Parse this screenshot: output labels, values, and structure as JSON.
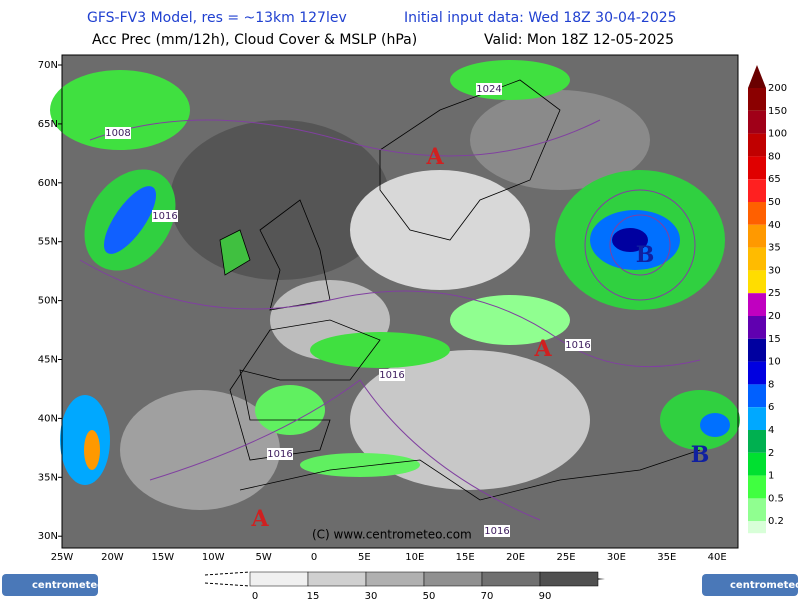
{
  "header": {
    "line1_left": "GFS-FV3 Model, res = ~13km 127lev",
    "line1_right": "Initial input data: Wed 18Z 30-04-2025",
    "line2_left": "Acc Prec (mm/12h), Cloud Cover & MSLP (hPa)",
    "line2_right": "Valid: Mon 18Z 12-05-2025"
  },
  "map": {
    "lat_labels": [
      "70N",
      "65N",
      "60N",
      "55N",
      "50N",
      "45N",
      "40N",
      "35N",
      "30N"
    ],
    "lon_labels": [
      "25W",
      "20W",
      "15W",
      "10W",
      "5W",
      "0",
      "5E",
      "10E",
      "15E",
      "20E",
      "25E",
      "30E",
      "35E",
      "40E"
    ],
    "isobar_labels": [
      "1024",
      "1008",
      "1016",
      "1016",
      "1016",
      "1016",
      "1016"
    ],
    "pressure_centers": [
      "A",
      "B",
      "A",
      "B",
      "A"
    ],
    "copyright": "(C) www.centrometeo.com"
  },
  "precip_legend": [
    {
      "label": "200",
      "color": "#8b0000"
    },
    {
      "label": "150",
      "color": "#a00018"
    },
    {
      "label": "100",
      "color": "#c00000"
    },
    {
      "label": "80",
      "color": "#e00000"
    },
    {
      "label": "65",
      "color": "#ff2020"
    },
    {
      "label": "50",
      "color": "#ff6000"
    },
    {
      "label": "40",
      "color": "#ff9900"
    },
    {
      "label": "35",
      "color": "#ffbb00"
    },
    {
      "label": "30",
      "color": "#ffdd00"
    },
    {
      "label": "25",
      "color": "#c000c0"
    },
    {
      "label": "20",
      "color": "#6000b0"
    },
    {
      "label": "15",
      "color": "#0000a0"
    },
    {
      "label": "10",
      "color": "#0000e0"
    },
    {
      "label": "8",
      "color": "#0060ff"
    },
    {
      "label": "6",
      "color": "#00a8ff"
    },
    {
      "label": "4",
      "color": "#00b050"
    },
    {
      "label": "2",
      "color": "#00e030"
    },
    {
      "label": "1",
      "color": "#40ff40"
    },
    {
      "label": "0.5",
      "color": "#90ff90"
    },
    {
      "label": "0.2",
      "color": "#d8ffd8"
    }
  ],
  "cloud_legend": [
    {
      "label": "0",
      "color": "#f0f0f0"
    },
    {
      "label": "15",
      "color": "#d0d0d0"
    },
    {
      "label": "30",
      "color": "#b0b0b0"
    },
    {
      "label": "50",
      "color": "#909090"
    },
    {
      "label": "70",
      "color": "#707070"
    },
    {
      "label": "90",
      "color": "#505050"
    }
  ],
  "logos": {
    "left": "centrometeo",
    "right": "centrometeo"
  }
}
